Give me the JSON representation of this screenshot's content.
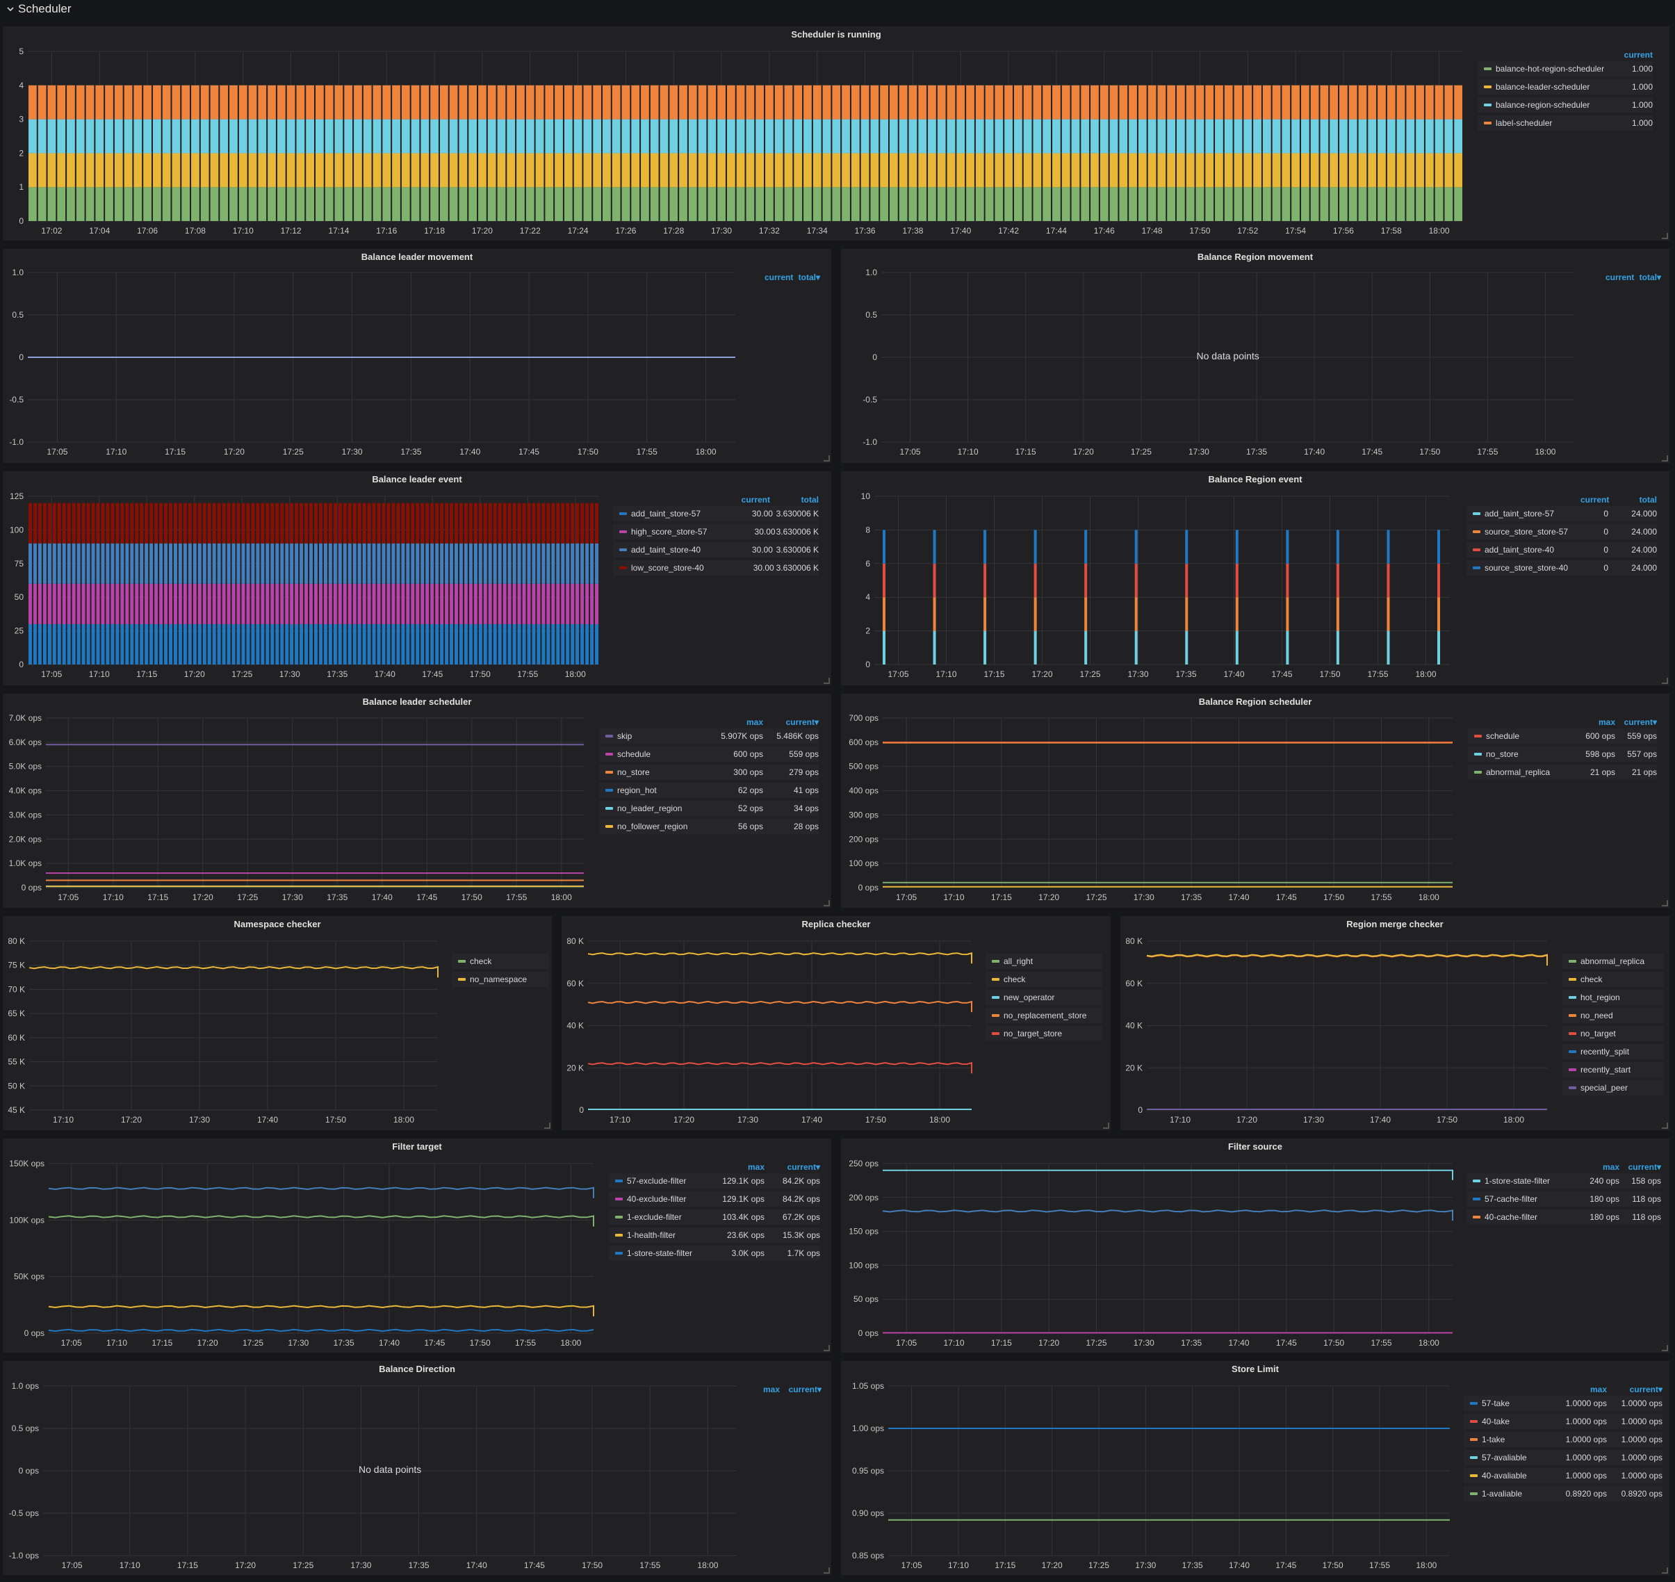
{
  "row": {
    "title": "Scheduler"
  },
  "panels": [
    {
      "id": "sched-running",
      "title": "Scheduler is running",
      "kind": "stack_bars",
      "y_ticks": [
        "0",
        "1",
        "2",
        "3",
        "4",
        "5"
      ],
      "y_max": 5,
      "x_ticks": [
        "17:02",
        "17:04",
        "17:06",
        "17:08",
        "17:10",
        "17:12",
        "17:14",
        "17:16",
        "17:18",
        "17:20",
        "17:22",
        "17:24",
        "17:26",
        "17:28",
        "17:30",
        "17:32",
        "17:34",
        "17:36",
        "17:38",
        "17:40",
        "17:42",
        "17:44",
        "17:46",
        "17:48",
        "17:50",
        "17:52",
        "17:54",
        "17:56",
        "17:58",
        "18:00"
      ],
      "legend_cols": [
        "current"
      ],
      "legend": [
        {
          "name": "balance-hot-region-scheduler",
          "color": "#7eb26d",
          "values": [
            "1.000"
          ]
        },
        {
          "name": "balance-leader-scheduler",
          "color": "#eab839",
          "values": [
            "1.000"
          ]
        },
        {
          "name": "balance-region-scheduler",
          "color": "#6ed0e0",
          "values": [
            "1.000"
          ]
        },
        {
          "name": "label-scheduler",
          "color": "#ef843c",
          "values": [
            "1.000"
          ]
        }
      ]
    },
    {
      "id": "leader-move",
      "title": "Balance leader movement",
      "kind": "lines",
      "y_ticks": [
        "1.0",
        "0.5",
        "0",
        "-0.5",
        "-1.0"
      ],
      "x_ticks": [
        "17:05",
        "17:10",
        "17:15",
        "17:20",
        "17:25",
        "17:30",
        "17:35",
        "17:40",
        "17:45",
        "17:50",
        "17:55",
        "18:00"
      ],
      "legend_cols": [
        "current",
        "total▾"
      ],
      "legend": []
    },
    {
      "id": "region-move",
      "title": "Balance Region movement",
      "kind": "lines",
      "nodata": "No data points",
      "y_ticks": [
        "1.0",
        "0.5",
        "0",
        "-0.5",
        "-1.0"
      ],
      "x_ticks": [
        "17:05",
        "17:10",
        "17:15",
        "17:20",
        "17:25",
        "17:30",
        "17:35",
        "17:40",
        "17:45",
        "17:50",
        "17:55",
        "18:00"
      ],
      "legend_cols": [
        "current",
        "total▾"
      ],
      "legend": []
    },
    {
      "id": "leader-event",
      "title": "Balance leader event",
      "kind": "stack_bars",
      "y_ticks": [
        "0",
        "25",
        "50",
        "75",
        "100",
        "125"
      ],
      "y_max": 125,
      "x_ticks": [
        "17:05",
        "17:10",
        "17:15",
        "17:20",
        "17:25",
        "17:30",
        "17:35",
        "17:40",
        "17:45",
        "17:50",
        "17:55",
        "18:00"
      ],
      "legend_cols": [
        "current",
        "total"
      ],
      "legend": [
        {
          "name": "add_taint_store-57",
          "color": "#1f78c1",
          "values": [
            "30.00",
            "3.630006 K"
          ]
        },
        {
          "name": "high_score_store-57",
          "color": "#ba43a9",
          "values": [
            "30.00",
            "3.630006 K"
          ]
        },
        {
          "name": "add_taint_store-40",
          "color": "#447ebc",
          "values": [
            "30.00",
            "3.630006 K"
          ]
        },
        {
          "name": "low_score_store-40",
          "color": "#890f02",
          "values": [
            "30.00",
            "3.630006 K"
          ]
        }
      ]
    },
    {
      "id": "region-event",
      "title": "Balance Region event",
      "kind": "spikes",
      "y_ticks": [
        "0",
        "2",
        "4",
        "6",
        "8",
        "10"
      ],
      "y_max": 10,
      "x_ticks": [
        "17:05",
        "17:10",
        "17:15",
        "17:20",
        "17:25",
        "17:30",
        "17:35",
        "17:40",
        "17:45",
        "17:50",
        "17:55",
        "18:00"
      ],
      "legend_cols": [
        "current",
        "total"
      ],
      "legend": [
        {
          "name": "add_taint_store-57",
          "color": "#6ed0e0",
          "values": [
            "0",
            "24.000"
          ]
        },
        {
          "name": "source_store_store-57",
          "color": "#ef843c",
          "values": [
            "0",
            "24.000"
          ]
        },
        {
          "name": "add_taint_store-40",
          "color": "#e24d42",
          "values": [
            "0",
            "24.000"
          ]
        },
        {
          "name": "source_store_store-40",
          "color": "#1f78c1",
          "values": [
            "0",
            "24.000"
          ]
        }
      ]
    },
    {
      "id": "leader-sched",
      "title": "Balance leader scheduler",
      "kind": "lines",
      "y_ticks": [
        "7.0K ops",
        "6.0K ops",
        "5.0K ops",
        "4.0K ops",
        "3.0K ops",
        "2.0K ops",
        "1.0K ops",
        "0 ops"
      ],
      "x_ticks": [
        "17:05",
        "17:10",
        "17:15",
        "17:20",
        "17:25",
        "17:30",
        "17:35",
        "17:40",
        "17:45",
        "17:50",
        "17:55",
        "18:00"
      ],
      "legend_cols": [
        "max",
        "current▾"
      ],
      "legend": [
        {
          "name": "skip",
          "color": "#705da0",
          "values": [
            "5.907K ops",
            "5.486K ops"
          ]
        },
        {
          "name": "schedule",
          "color": "#ba43a9",
          "values": [
            "600 ops",
            "559 ops"
          ]
        },
        {
          "name": "no_store",
          "color": "#ef843c",
          "values": [
            "300 ops",
            "279 ops"
          ]
        },
        {
          "name": "region_hot",
          "color": "#1f78c1",
          "values": [
            "62 ops",
            "41 ops"
          ]
        },
        {
          "name": "no_leader_region",
          "color": "#6ed0e0",
          "values": [
            "52 ops",
            "34 ops"
          ]
        },
        {
          "name": "no_follower_region",
          "color": "#eab839",
          "values": [
            "56 ops",
            "28 ops"
          ]
        }
      ]
    },
    {
      "id": "region-sched",
      "title": "Balance Region scheduler",
      "kind": "lines",
      "y_ticks": [
        "700 ops",
        "600 ops",
        "500 ops",
        "400 ops",
        "300 ops",
        "200 ops",
        "100 ops",
        "0 ops"
      ],
      "x_ticks": [
        "17:05",
        "17:10",
        "17:15",
        "17:20",
        "17:25",
        "17:30",
        "17:35",
        "17:40",
        "17:45",
        "17:50",
        "17:55",
        "18:00"
      ],
      "legend_cols": [
        "max",
        "current▾"
      ],
      "legend": [
        {
          "name": "schedule",
          "color": "#e24d42",
          "values": [
            "600 ops",
            "559 ops"
          ]
        },
        {
          "name": "no_store",
          "color": "#6ed0e0",
          "values": [
            "598 ops",
            "557 ops"
          ]
        },
        {
          "name": "abnormal_replica",
          "color": "#7eb26d",
          "values": [
            "21 ops",
            "21 ops"
          ]
        }
      ]
    },
    {
      "id": "ns-checker",
      "title": "Namespace checker",
      "kind": "lines",
      "y_ticks": [
        "80 K",
        "75 K",
        "70 K",
        "65 K",
        "60 K",
        "55 K",
        "50 K",
        "45 K"
      ],
      "x_ticks": [
        "17:10",
        "17:20",
        "17:30",
        "17:40",
        "17:50",
        "18:00"
      ],
      "legend_cols": [],
      "legend": [
        {
          "name": "check",
          "color": "#7eb26d",
          "values": []
        },
        {
          "name": "no_namespace",
          "color": "#eab839",
          "values": []
        }
      ]
    },
    {
      "id": "replica-checker",
      "title": "Replica checker",
      "kind": "lines",
      "y_ticks": [
        "80 K",
        "60 K",
        "40 K",
        "20 K",
        "0"
      ],
      "x_ticks": [
        "17:10",
        "17:20",
        "17:30",
        "17:40",
        "17:50",
        "18:00"
      ],
      "legend_cols": [],
      "legend": [
        {
          "name": "all_right",
          "color": "#7eb26d",
          "values": []
        },
        {
          "name": "check",
          "color": "#eab839",
          "values": []
        },
        {
          "name": "new_operator",
          "color": "#6ed0e0",
          "values": []
        },
        {
          "name": "no_replacement_store",
          "color": "#ef843c",
          "values": []
        },
        {
          "name": "no_target_store",
          "color": "#e24d42",
          "values": []
        }
      ]
    },
    {
      "id": "merge-checker",
      "title": "Region merge checker",
      "kind": "lines",
      "y_ticks": [
        "80 K",
        "60 K",
        "40 K",
        "20 K",
        "0"
      ],
      "x_ticks": [
        "17:10",
        "17:20",
        "17:30",
        "17:40",
        "17:50",
        "18:00"
      ],
      "legend_cols": [],
      "legend": [
        {
          "name": "abnormal_replica",
          "color": "#7eb26d",
          "values": []
        },
        {
          "name": "check",
          "color": "#eab839",
          "values": []
        },
        {
          "name": "hot_region",
          "color": "#6ed0e0",
          "values": []
        },
        {
          "name": "no_need",
          "color": "#ef843c",
          "values": []
        },
        {
          "name": "no_target",
          "color": "#e24d42",
          "values": []
        },
        {
          "name": "recently_split",
          "color": "#1f78c1",
          "values": []
        },
        {
          "name": "recently_start",
          "color": "#ba43a9",
          "values": []
        },
        {
          "name": "special_peer",
          "color": "#705da0",
          "values": []
        }
      ]
    },
    {
      "id": "filter-target",
      "title": "Filter target",
      "kind": "lines",
      "y_ticks": [
        "150K ops",
        "100K ops",
        "50K ops",
        "0 ops"
      ],
      "x_ticks": [
        "17:05",
        "17:10",
        "17:15",
        "17:20",
        "17:25",
        "17:30",
        "17:35",
        "17:40",
        "17:45",
        "17:50",
        "17:55",
        "18:00"
      ],
      "legend_cols": [
        "max",
        "current▾"
      ],
      "legend": [
        {
          "name": "57-exclude-filter",
          "color": "#1f78c1",
          "values": [
            "129.1K ops",
            "84.2K ops"
          ]
        },
        {
          "name": "40-exclude-filter",
          "color": "#ba43a9",
          "values": [
            "129.1K ops",
            "84.2K ops"
          ]
        },
        {
          "name": "1-exclude-filter",
          "color": "#7eb26d",
          "values": [
            "103.4K ops",
            "67.2K ops"
          ]
        },
        {
          "name": "1-health-filter",
          "color": "#eab839",
          "values": [
            "23.6K ops",
            "15.3K ops"
          ]
        },
        {
          "name": "1-store-state-filter",
          "color": "#1f78c1",
          "values": [
            "3.0K ops",
            "1.7K ops"
          ]
        }
      ]
    },
    {
      "id": "filter-source",
      "title": "Filter source",
      "kind": "lines",
      "y_ticks": [
        "250 ops",
        "200 ops",
        "150 ops",
        "100 ops",
        "50 ops",
        "0 ops"
      ],
      "x_ticks": [
        "17:05",
        "17:10",
        "17:15",
        "17:20",
        "17:25",
        "17:30",
        "17:35",
        "17:40",
        "17:45",
        "17:50",
        "17:55",
        "18:00"
      ],
      "legend_cols": [
        "max",
        "current▾"
      ],
      "legend": [
        {
          "name": "1-store-state-filter",
          "color": "#6ed0e0",
          "values": [
            "240 ops",
            "158 ops"
          ]
        },
        {
          "name": "57-cache-filter",
          "color": "#1f78c1",
          "values": [
            "180 ops",
            "118 ops"
          ]
        },
        {
          "name": "40-cache-filter",
          "color": "#ef843c",
          "values": [
            "180 ops",
            "118 ops"
          ]
        }
      ]
    },
    {
      "id": "balance-direction",
      "title": "Balance Direction",
      "kind": "lines",
      "nodata": "No data points",
      "y_ticks": [
        "1.0 ops",
        "0.5 ops",
        "0 ops",
        "-0.5 ops",
        "-1.0 ops"
      ],
      "x_ticks": [
        "17:05",
        "17:10",
        "17:15",
        "17:20",
        "17:25",
        "17:30",
        "17:35",
        "17:40",
        "17:45",
        "17:50",
        "17:55",
        "18:00"
      ],
      "legend_cols": [
        "max",
        "current▾"
      ],
      "legend": []
    },
    {
      "id": "store-limit",
      "title": "Store Limit",
      "kind": "lines",
      "y_ticks": [
        "1.05 ops",
        "1.00 ops",
        "0.95 ops",
        "0.90 ops",
        "0.85 ops"
      ],
      "x_ticks": [
        "17:05",
        "17:10",
        "17:15",
        "17:20",
        "17:25",
        "17:30",
        "17:35",
        "17:40",
        "17:45",
        "17:50",
        "17:55",
        "18:00"
      ],
      "legend_cols": [
        "max",
        "current▾"
      ],
      "legend": [
        {
          "name": "57-take",
          "color": "#1f78c1",
          "values": [
            "1.0000 ops",
            "1.0000 ops"
          ]
        },
        {
          "name": "40-take",
          "color": "#e24d42",
          "values": [
            "1.0000 ops",
            "1.0000 ops"
          ]
        },
        {
          "name": "1-take",
          "color": "#ef843c",
          "values": [
            "1.0000 ops",
            "1.0000 ops"
          ]
        },
        {
          "name": "57-avaliable",
          "color": "#6ed0e0",
          "values": [
            "1.0000 ops",
            "1.0000 ops"
          ]
        },
        {
          "name": "40-avaliable",
          "color": "#eab839",
          "values": [
            "1.0000 ops",
            "1.0000 ops"
          ]
        },
        {
          "name": "1-avaliable",
          "color": "#7eb26d",
          "values": [
            "0.8920 ops",
            "0.8920 ops"
          ]
        }
      ]
    }
  ]
}
